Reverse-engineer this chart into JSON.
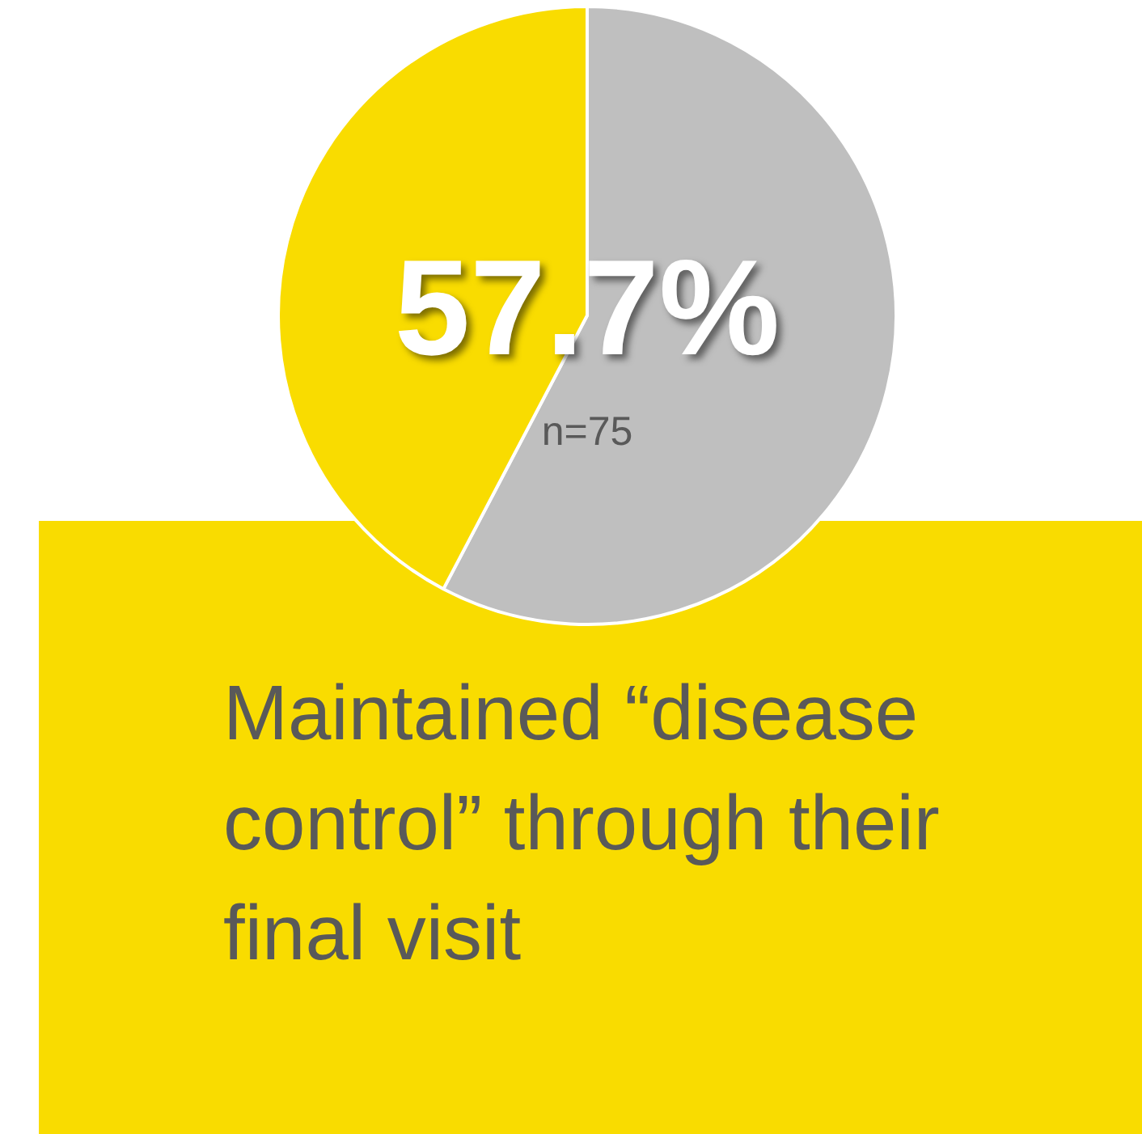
{
  "chart_data": {
    "type": "pie",
    "categories": [
      null,
      null
    ],
    "values": [
      57.7,
      42.3
    ],
    "colors": [
      "#bfbfbf",
      "#f9dc00"
    ],
    "annotations": [
      "57.7%",
      "n=75",
      "Maintained “disease control” through their final visit"
    ]
  }
}
